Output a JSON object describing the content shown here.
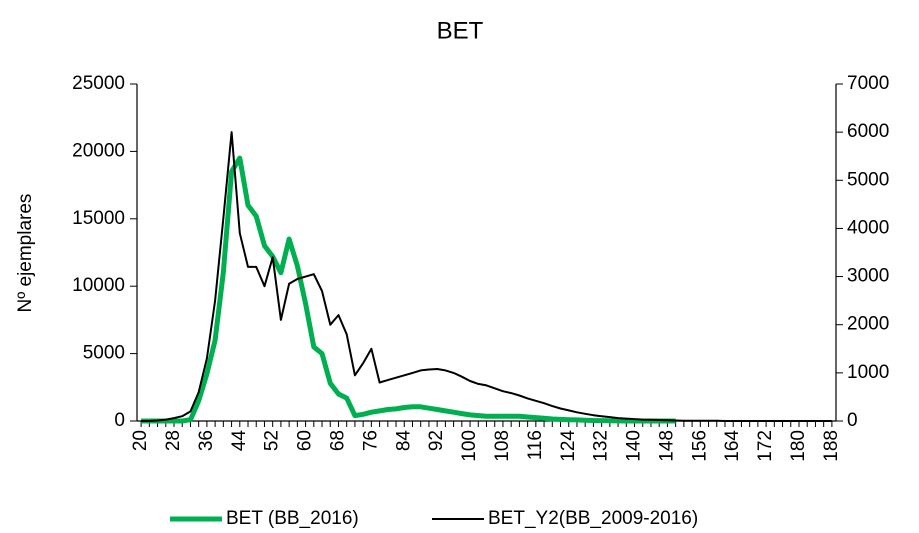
{
  "chart_data": {
    "type": "line",
    "title": "BET",
    "y_label": "Nº ejemplares",
    "x": [
      20,
      22,
      24,
      26,
      28,
      30,
      32,
      34,
      36,
      38,
      40,
      42,
      44,
      46,
      48,
      50,
      52,
      54,
      56,
      58,
      60,
      62,
      64,
      66,
      68,
      70,
      72,
      74,
      76,
      78,
      80,
      82,
      84,
      86,
      88,
      90,
      92,
      94,
      96,
      98,
      100,
      102,
      104,
      106,
      108,
      110,
      112,
      114,
      116,
      118,
      120,
      122,
      124,
      126,
      128,
      130,
      132,
      134,
      136,
      138,
      140,
      142,
      144,
      146,
      148,
      150,
      152,
      154,
      156,
      158,
      160,
      162,
      164,
      166,
      168,
      170,
      172,
      174,
      176,
      178,
      180,
      182,
      184,
      186,
      188
    ],
    "xlim": [
      19,
      189
    ],
    "xticks": [
      20,
      28,
      36,
      44,
      52,
      60,
      68,
      76,
      84,
      92,
      100,
      108,
      116,
      124,
      132,
      140,
      148,
      156,
      164,
      172,
      180,
      188
    ],
    "ylim": [
      0,
      25000
    ],
    "yticks": [
      0,
      5000,
      10000,
      15000,
      20000,
      25000
    ],
    "y2lim": [
      0,
      7000
    ],
    "y2ticks": [
      0,
      1000,
      2000,
      3000,
      4000,
      5000,
      6000,
      7000
    ],
    "legend": "bottom",
    "series": [
      {
        "name": "BET (BB_2016)",
        "color": "#00b050",
        "values": [
          0,
          0,
          0,
          0,
          0,
          0,
          100,
          1500,
          3500,
          6000,
          11000,
          18500,
          19500,
          16000,
          15200,
          13000,
          12200,
          11000,
          13500,
          11500,
          8700,
          5500,
          5000,
          2800,
          2000,
          1700,
          400,
          500,
          650,
          750,
          850,
          900,
          1000,
          1050,
          1050,
          950,
          850,
          750,
          650,
          550,
          450,
          400,
          350,
          350,
          350,
          350,
          350,
          300,
          250,
          200,
          150,
          120,
          100,
          80,
          60,
          40,
          30,
          20,
          10,
          0,
          0,
          0,
          0,
          0,
          0,
          0,
          null,
          null,
          null,
          null,
          null,
          null,
          null,
          null,
          null,
          null,
          null,
          null,
          null,
          null,
          null,
          null,
          null,
          null,
          null
        ]
      },
      {
        "name": "BET_Y2(BB_2009-2016)",
        "color": "#000000",
        "axis": "y2",
        "values": [
          0,
          0,
          10,
          30,
          60,
          100,
          200,
          600,
          1300,
          2500,
          4200,
          6000,
          3900,
          3200,
          3200,
          2800,
          3400,
          2100,
          2850,
          2950,
          3000,
          3050,
          2700,
          2000,
          2200,
          1800,
          950,
          1200,
          1500,
          800,
          850,
          900,
          950,
          1000,
          1050,
          1070,
          1080,
          1050,
          1000,
          920,
          830,
          770,
          740,
          680,
          620,
          580,
          530,
          470,
          420,
          370,
          310,
          260,
          220,
          180,
          150,
          120,
          100,
          80,
          60,
          50,
          40,
          30,
          25,
          20,
          15,
          10,
          5,
          5,
          5,
          5,
          5,
          0,
          0,
          0,
          0,
          0,
          0,
          0,
          0,
          0,
          0,
          0,
          0,
          0,
          0
        ]
      }
    ]
  }
}
